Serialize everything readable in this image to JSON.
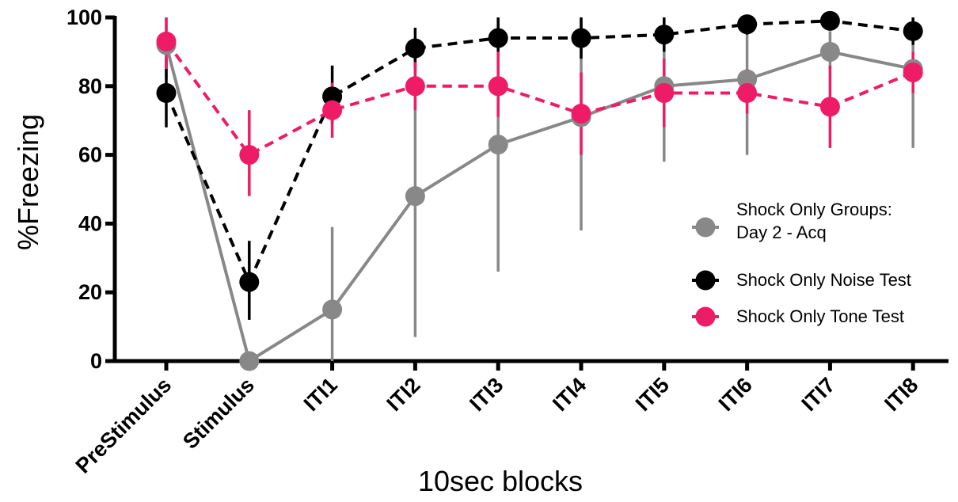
{
  "chart_data": {
    "type": "line",
    "xlabel": "10sec blocks",
    "ylabel": "%Freezing",
    "ylim": [
      0,
      100
    ],
    "yticks": [
      0,
      20,
      40,
      60,
      80,
      100
    ],
    "categories": [
      "PreStimulus",
      "Stimulus",
      "ITI1",
      "ITI2",
      "ITI3",
      "ITI4",
      "ITI5",
      "ITI6",
      "ITI7",
      "ITI8"
    ],
    "grid": false,
    "legend_position": "right",
    "series": [
      {
        "name": "Shock Only Groups:\nDay 2 - Acq",
        "name_lines": [
          "Shock Only Groups:",
          "Day 2 - Acq"
        ],
        "color": "#888888",
        "line_style": "solid",
        "values": [
          92,
          0,
          15,
          48,
          63,
          71,
          80,
          82,
          90,
          85
        ],
        "err_low": [
          82,
          0,
          0,
          7,
          26,
          38,
          58,
          60,
          85,
          62
        ],
        "err_high": [
          100,
          0,
          39,
          90,
          100,
          100,
          100,
          100,
          96,
          100
        ]
      },
      {
        "name": "Shock Only Noise Test",
        "color": "#000000",
        "line_style": "dashed",
        "values": [
          78,
          23,
          77,
          91,
          94,
          94,
          95,
          98,
          99,
          96
        ],
        "err_low": [
          68,
          12,
          69,
          85,
          90,
          88,
          90,
          95,
          97,
          92
        ],
        "err_high": [
          88,
          35,
          86,
          97,
          100,
          100,
          100,
          100,
          100,
          100
        ]
      },
      {
        "name": "Shock Only Tone Test",
        "color": "#ee1c66",
        "line_style": "dashed",
        "values": [
          93,
          60,
          73,
          80,
          80,
          72,
          78,
          78,
          74,
          84
        ],
        "err_low": [
          85,
          48,
          65,
          73,
          71,
          60,
          68,
          72,
          62,
          78
        ],
        "err_high": [
          100,
          73,
          81,
          87,
          90,
          84,
          88,
          85,
          86,
          90
        ]
      }
    ]
  }
}
